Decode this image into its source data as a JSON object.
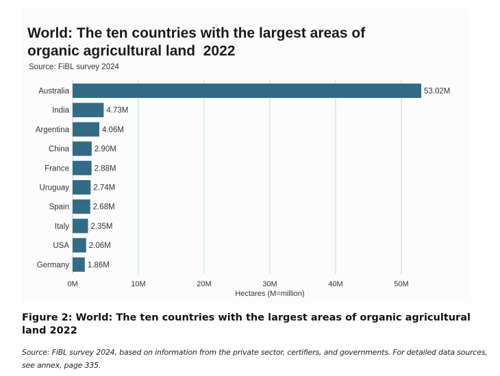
{
  "chart_data": {
    "type": "bar",
    "orientation": "horizontal",
    "title": "World: The ten countries with the largest areas of organic agricultural land 2022",
    "title_lines": [
      "World: The ten countries with the largest areas of",
      "organic agricultural land  2022"
    ],
    "subtitle": "Source: FiBL survey 2024",
    "categories": [
      "Australia",
      "India",
      "Argentina",
      "China",
      "France",
      "Uruguay",
      "Spain",
      "Italy",
      "USA",
      "Germany"
    ],
    "values": [
      53.02,
      4.73,
      4.06,
      2.9,
      2.88,
      2.74,
      2.68,
      2.35,
      2.06,
      1.86
    ],
    "data_labels": [
      "53.02M",
      "4.73M",
      "4.06M",
      "2.90M",
      "2.88M",
      "2.74M",
      "2.68M",
      "2.35M",
      "2.06M",
      "1.86M"
    ],
    "xlabel": "Hectares (M=million)",
    "ylabel": "",
    "xticks": [
      0,
      10,
      20,
      30,
      40,
      50
    ],
    "xtick_labels": [
      "0M",
      "10M",
      "20M",
      "30M",
      "40M",
      "50M"
    ],
    "xlim": [
      0,
      55
    ],
    "grid": "vertical",
    "bar_color": "#336b87",
    "grid_color": "#c9dfea"
  },
  "figure": {
    "caption": "Figure 2: World: The ten countries with the largest areas of organic agricultural land 2022",
    "source": "Source: FiBL survey 2024, based on information from the private sector, certifiers, and governments. For detailed data sources, see annex, page 335."
  }
}
